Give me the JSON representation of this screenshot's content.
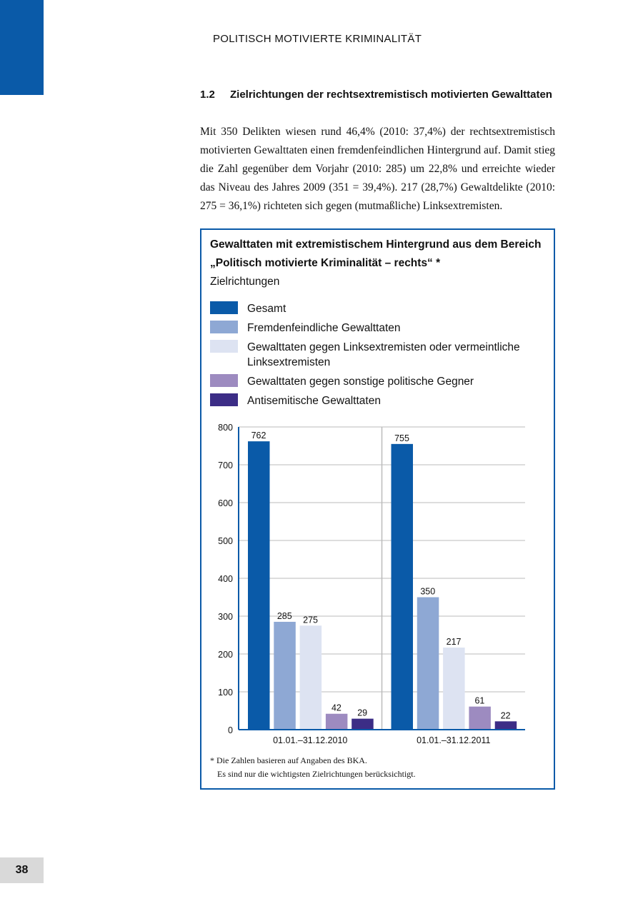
{
  "header": {
    "running_title": "POLITISCH MOTIVIERTE KRIMINALITÄT"
  },
  "section": {
    "number": "1.2",
    "title": "Zielrichtungen der rechtsextremistisch motivierten Gewalttaten"
  },
  "body_text": "Mit 350 Delikten wiesen rund 46,4% (2010: 37,4%) der rechtsextremistisch motivierten Gewalttaten einen fremdenfeindlichen Hintergrund auf. Damit stieg die Zahl gegenüber dem Vorjahr (2010: 285) um 22,8% und erreichte wieder das Niveau des Jahres 2009 (351 = 39,4%). 217 (28,7%) Gewaltdelikte (2010: 275 = 36,1%) richteten sich gegen (mutmaßliche) Linksextremisten.",
  "chart_data": {
    "type": "bar",
    "title": "Gewalttaten mit extremistischem Hintergrund aus dem Bereich „Politisch motivierte Kriminalität – rechts“ *",
    "subtitle": "Zielrichtungen",
    "categories": [
      "01.01.–31.12.2010",
      "01.01.–31.12.2011"
    ],
    "series": [
      {
        "name": "Gesamt",
        "color": "#0a5aa8",
        "values": [
          762,
          755
        ]
      },
      {
        "name": "Fremdenfeindliche Gewalttaten",
        "color": "#8ea8d4",
        "values": [
          285,
          350
        ]
      },
      {
        "name": "Gewalttaten gegen Linksextremisten oder vermeintliche Linksextremisten",
        "color": "#dde3f2",
        "values": [
          275,
          217
        ]
      },
      {
        "name": "Gewalttaten gegen sonstige politische Gegner",
        "color": "#9d8bc0",
        "values": [
          42,
          61
        ]
      },
      {
        "name": "Antisemitische Gewalttaten",
        "color": "#3c2d86",
        "values": [
          29,
          22
        ]
      }
    ],
    "ylim": [
      0,
      800
    ],
    "yticks": [
      "0",
      "100",
      "200",
      "300",
      "400",
      "500",
      "600",
      "700",
      "800"
    ],
    "grid": true,
    "legend": "top",
    "footnote": [
      "* Die Zahlen basieren auf Angaben des BKA.",
      "Es sind nur die wichtigsten Zielrichtungen berücksichtigt."
    ]
  },
  "page_number": "38"
}
